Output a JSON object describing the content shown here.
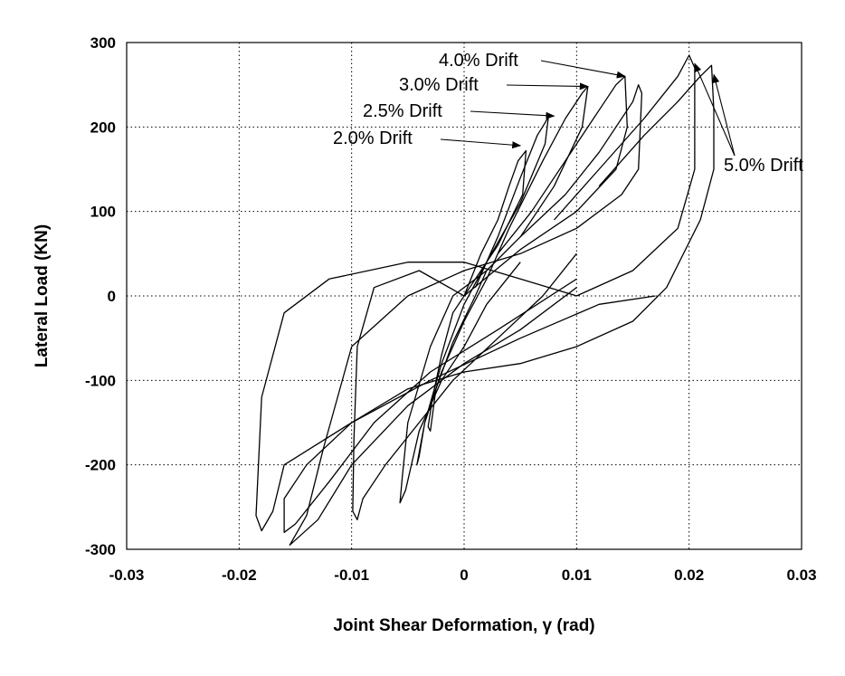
{
  "chart_data": {
    "type": "line",
    "title": "",
    "xlabel": "Joint Shear Deformation, γ (rad)",
    "ylabel": "Lateral Load (KN)",
    "xlim": [
      -0.03,
      0.03
    ],
    "ylim": [
      -300,
      300
    ],
    "x_ticks": [
      -0.03,
      -0.02,
      -0.01,
      0,
      0.01,
      0.02,
      0.03
    ],
    "x_tick_labels": [
      "-0.03",
      "-0.02",
      "-0.01",
      "0",
      "0.01",
      "0.02",
      "0.03"
    ],
    "y_ticks": [
      -300,
      -200,
      -100,
      0,
      100,
      200,
      300
    ],
    "y_tick_labels": [
      "-300",
      "-200",
      "-100",
      "0",
      "100",
      "200",
      "300"
    ],
    "grid": true,
    "legend": "none",
    "series": [
      {
        "points": [
          [
            0,
            0
          ],
          [
            0.0015,
            50
          ],
          [
            0.003,
            90
          ],
          [
            0.004,
            130
          ],
          [
            0.0048,
            160
          ],
          [
            0.0055,
            172
          ],
          [
            0.0052,
            120
          ],
          [
            0.003,
            60
          ],
          [
            0.001,
            20
          ],
          [
            -0.001,
            -20
          ],
          [
            -0.002,
            -70
          ],
          [
            -0.0028,
            -120
          ],
          [
            -0.0032,
            -155
          ],
          [
            -0.003,
            -160
          ],
          [
            -0.0025,
            -110
          ],
          [
            -0.001,
            -55
          ],
          [
            0.001,
            0
          ],
          [
            0.002,
            30
          ]
        ]
      },
      {
        "points": [
          [
            0.001,
            10
          ],
          [
            0.003,
            70
          ],
          [
            0.005,
            140
          ],
          [
            0.0065,
            190
          ],
          [
            0.0072,
            205
          ],
          [
            0.0075,
            213
          ],
          [
            0.0072,
            180
          ],
          [
            0.005,
            110
          ],
          [
            0.002,
            40
          ],
          [
            0,
            -10
          ],
          [
            -0.002,
            -80
          ],
          [
            -0.0035,
            -150
          ],
          [
            -0.004,
            -190
          ],
          [
            -0.0042,
            -200
          ],
          [
            -0.0035,
            -150
          ],
          [
            -0.002,
            -90
          ],
          [
            0,
            -30
          ],
          [
            0.002,
            20
          ]
        ]
      },
      {
        "points": [
          [
            0.002,
            20
          ],
          [
            0.004,
            80
          ],
          [
            0.007,
            160
          ],
          [
            0.009,
            210
          ],
          [
            0.0105,
            240
          ],
          [
            0.011,
            248
          ],
          [
            0.0105,
            200
          ],
          [
            0.008,
            130
          ],
          [
            0.005,
            70
          ],
          [
            0.002,
            30
          ],
          [
            -0.001,
            0
          ],
          [
            -0.003,
            -60
          ],
          [
            -0.005,
            -150
          ],
          [
            -0.0055,
            -215
          ],
          [
            -0.0057,
            -245
          ],
          [
            -0.0052,
            -230
          ],
          [
            -0.004,
            -160
          ],
          [
            -0.002,
            -100
          ],
          [
            0,
            -60
          ],
          [
            0.002,
            -10
          ],
          [
            0.005,
            40
          ]
        ]
      },
      {
        "points": [
          [
            0.003,
            50
          ],
          [
            0.006,
            100
          ],
          [
            0.009,
            160
          ],
          [
            0.012,
            220
          ],
          [
            0.0135,
            250
          ],
          [
            0.0143,
            260
          ],
          [
            0.0145,
            200
          ],
          [
            0.0135,
            150
          ],
          [
            0.01,
            100
          ],
          [
            0.005,
            55
          ],
          [
            0,
            0
          ],
          [
            -0.004,
            30
          ],
          [
            -0.008,
            10
          ],
          [
            -0.0095,
            -60
          ],
          [
            -0.0098,
            -170
          ],
          [
            -0.0099,
            -255
          ],
          [
            -0.0095,
            -265
          ],
          [
            -0.009,
            -240
          ],
          [
            -0.007,
            -200
          ],
          [
            -0.004,
            -150
          ],
          [
            -0.001,
            -100
          ],
          [
            0.003,
            -50
          ],
          [
            0.007,
            0
          ],
          [
            0.01,
            50
          ]
        ]
      },
      {
        "points": [
          [
            0.005,
            70
          ],
          [
            0.009,
            120
          ],
          [
            0.012,
            170
          ],
          [
            0.015,
            230
          ],
          [
            0.0155,
            250
          ],
          [
            0.0158,
            240
          ],
          [
            0.0155,
            150
          ],
          [
            0.014,
            120
          ],
          [
            0.01,
            80
          ],
          [
            0.005,
            50
          ],
          [
            0,
            30
          ],
          [
            -0.005,
            0
          ],
          [
            -0.01,
            -60
          ],
          [
            -0.0125,
            -180
          ],
          [
            -0.014,
            -260
          ],
          [
            -0.0155,
            -295
          ],
          [
            -0.013,
            -265
          ],
          [
            -0.01,
            -200
          ],
          [
            -0.005,
            -130
          ],
          [
            0,
            -80
          ],
          [
            0.005,
            -40
          ],
          [
            0.01,
            10
          ]
        ]
      },
      {
        "points": [
          [
            0.008,
            90
          ],
          [
            0.012,
            150
          ],
          [
            0.016,
            210
          ],
          [
            0.019,
            260
          ],
          [
            0.02,
            285
          ],
          [
            0.0205,
            270
          ],
          [
            0.0205,
            150
          ],
          [
            0.019,
            80
          ],
          [
            0.015,
            30
          ],
          [
            0.01,
            0
          ],
          [
            0.005,
            20
          ],
          [
            0,
            40
          ],
          [
            -0.005,
            40
          ],
          [
            -0.012,
            20
          ],
          [
            -0.016,
            -20
          ],
          [
            -0.018,
            -120
          ],
          [
            -0.0185,
            -260
          ],
          [
            -0.018,
            -278
          ],
          [
            -0.017,
            -255
          ],
          [
            -0.016,
            -200
          ],
          [
            -0.01,
            -150
          ],
          [
            -0.003,
            -100
          ],
          [
            0.005,
            -50
          ],
          [
            0.012,
            -10
          ],
          [
            0.017,
            0
          ]
        ]
      },
      {
        "points": [
          [
            0.012,
            130
          ],
          [
            0.016,
            190
          ],
          [
            0.019,
            230
          ],
          [
            0.021,
            260
          ],
          [
            0.022,
            273
          ],
          [
            0.0222,
            220
          ],
          [
            0.0222,
            150
          ],
          [
            0.021,
            90
          ],
          [
            0.018,
            10
          ],
          [
            0.015,
            -30
          ],
          [
            0.01,
            -60
          ],
          [
            0.005,
            -80
          ],
          [
            0,
            -90
          ],
          [
            -0.005,
            -110
          ],
          [
            -0.01,
            -150
          ],
          [
            -0.014,
            -200
          ],
          [
            -0.016,
            -240
          ],
          [
            -0.016,
            -280
          ],
          [
            -0.015,
            -270
          ],
          [
            -0.012,
            -220
          ],
          [
            -0.008,
            -150
          ],
          [
            -0.003,
            -90
          ],
          [
            0.003,
            -40
          ],
          [
            0.01,
            20
          ]
        ]
      }
    ],
    "annotations": [
      {
        "text": "4.0% Drift",
        "point": [
          0.0143,
          260
        ]
      },
      {
        "text": "3.0% Drift",
        "point": [
          0.011,
          248
        ]
      },
      {
        "text": "2.5% Drift",
        "point": [
          0.008,
          213
        ]
      },
      {
        "text": "2.0% Drift",
        "point": [
          0.005,
          178
        ]
      },
      {
        "text": "5.0% Drift",
        "points": [
          [
            0.0205,
            275
          ],
          [
            0.0222,
            262
          ]
        ]
      }
    ]
  }
}
